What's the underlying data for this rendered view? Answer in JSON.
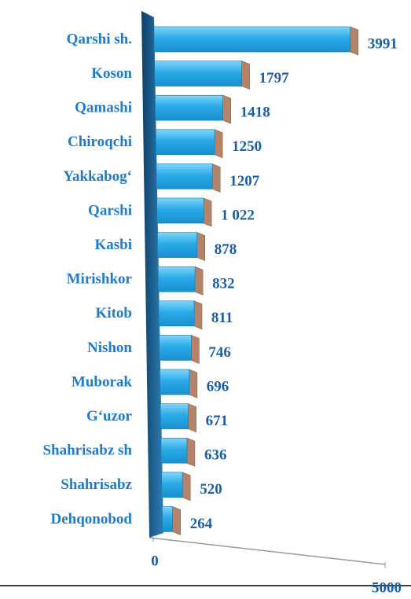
{
  "chart_data": {
    "type": "bar",
    "orientation": "horizontal",
    "categories": [
      "Qarshi sh.",
      "Koson",
      "Qamashi",
      "Chiroqchi",
      "Yakkabog‘",
      "Qarshi",
      "Kasbi",
      "Mirishkor",
      "Kitob",
      "Nishon",
      "Muborak",
      "G‘uzor",
      "Shahrisabz sh",
      "Shahrisabz",
      "Dehqonobod"
    ],
    "values": [
      3991,
      1797,
      1418,
      1250,
      1207,
      1022,
      878,
      832,
      811,
      746,
      696,
      671,
      636,
      520,
      264
    ],
    "value_labels": [
      "3991",
      "1797",
      "1418",
      "1250",
      "1207",
      "1 022",
      "878",
      "832",
      "811",
      "746",
      "696",
      "671",
      "636",
      "520",
      "264"
    ],
    "color": "#2aaae8",
    "xlim": [
      0,
      5000
    ],
    "xticks": [
      0,
      5000
    ]
  }
}
